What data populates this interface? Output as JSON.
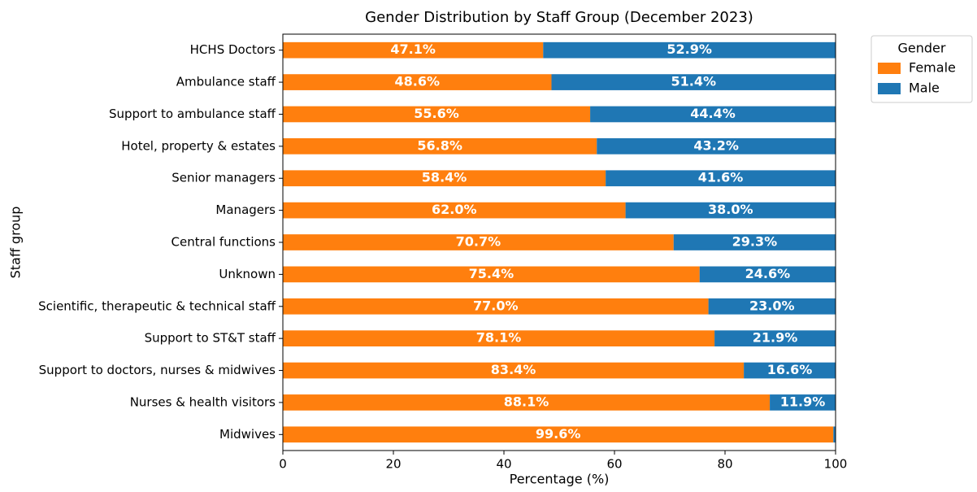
{
  "chart_data": {
    "type": "stacked_barh",
    "title": "Gender Distribution by Staff Group (December 2023)",
    "x_label": "Percentage (%)",
    "y_label": "Staff group",
    "categories": [
      "HCHS Doctors",
      "Ambulance staff",
      "Support to ambulance staff",
      "Hotel, property & estates",
      "Senior managers",
      "Managers",
      "Central functions",
      "Unknown",
      "Scientific, therapeutic & technical staff",
      "Support to ST&T staff",
      "Support to doctors, nurses & midwives",
      "Nurses & health visitors",
      "Midwives"
    ],
    "series": [
      {
        "name": "Female",
        "color": "#ff7f0e",
        "values": [
          47.1,
          48.6,
          55.6,
          56.8,
          58.4,
          62.0,
          70.7,
          75.4,
          77.0,
          78.1,
          83.4,
          88.1,
          99.6
        ],
        "value_labels": [
          "47.1%",
          "48.6%",
          "55.6%",
          "56.8%",
          "58.4%",
          "62.0%",
          "70.7%",
          "75.4%",
          "77.0%",
          "78.1%",
          "83.4%",
          "88.1%",
          "99.6%"
        ]
      },
      {
        "name": "Male",
        "color": "#1f77b4",
        "values": [
          52.9,
          51.4,
          44.4,
          43.2,
          41.6,
          38.0,
          29.3,
          24.6,
          23.0,
          21.9,
          16.6,
          11.9,
          0.4
        ],
        "value_labels": [
          "52.9%",
          "51.4%",
          "44.4%",
          "43.2%",
          "41.6%",
          "38.0%",
          "29.3%",
          "24.6%",
          "23.0%",
          "21.9%",
          "16.6%",
          "11.9%",
          null
        ]
      }
    ],
    "xlim": [
      0,
      100
    ],
    "xticks": [
      0,
      20,
      40,
      60,
      80,
      100
    ],
    "legend_title": "Gender",
    "legend_position": "outside upper right"
  }
}
